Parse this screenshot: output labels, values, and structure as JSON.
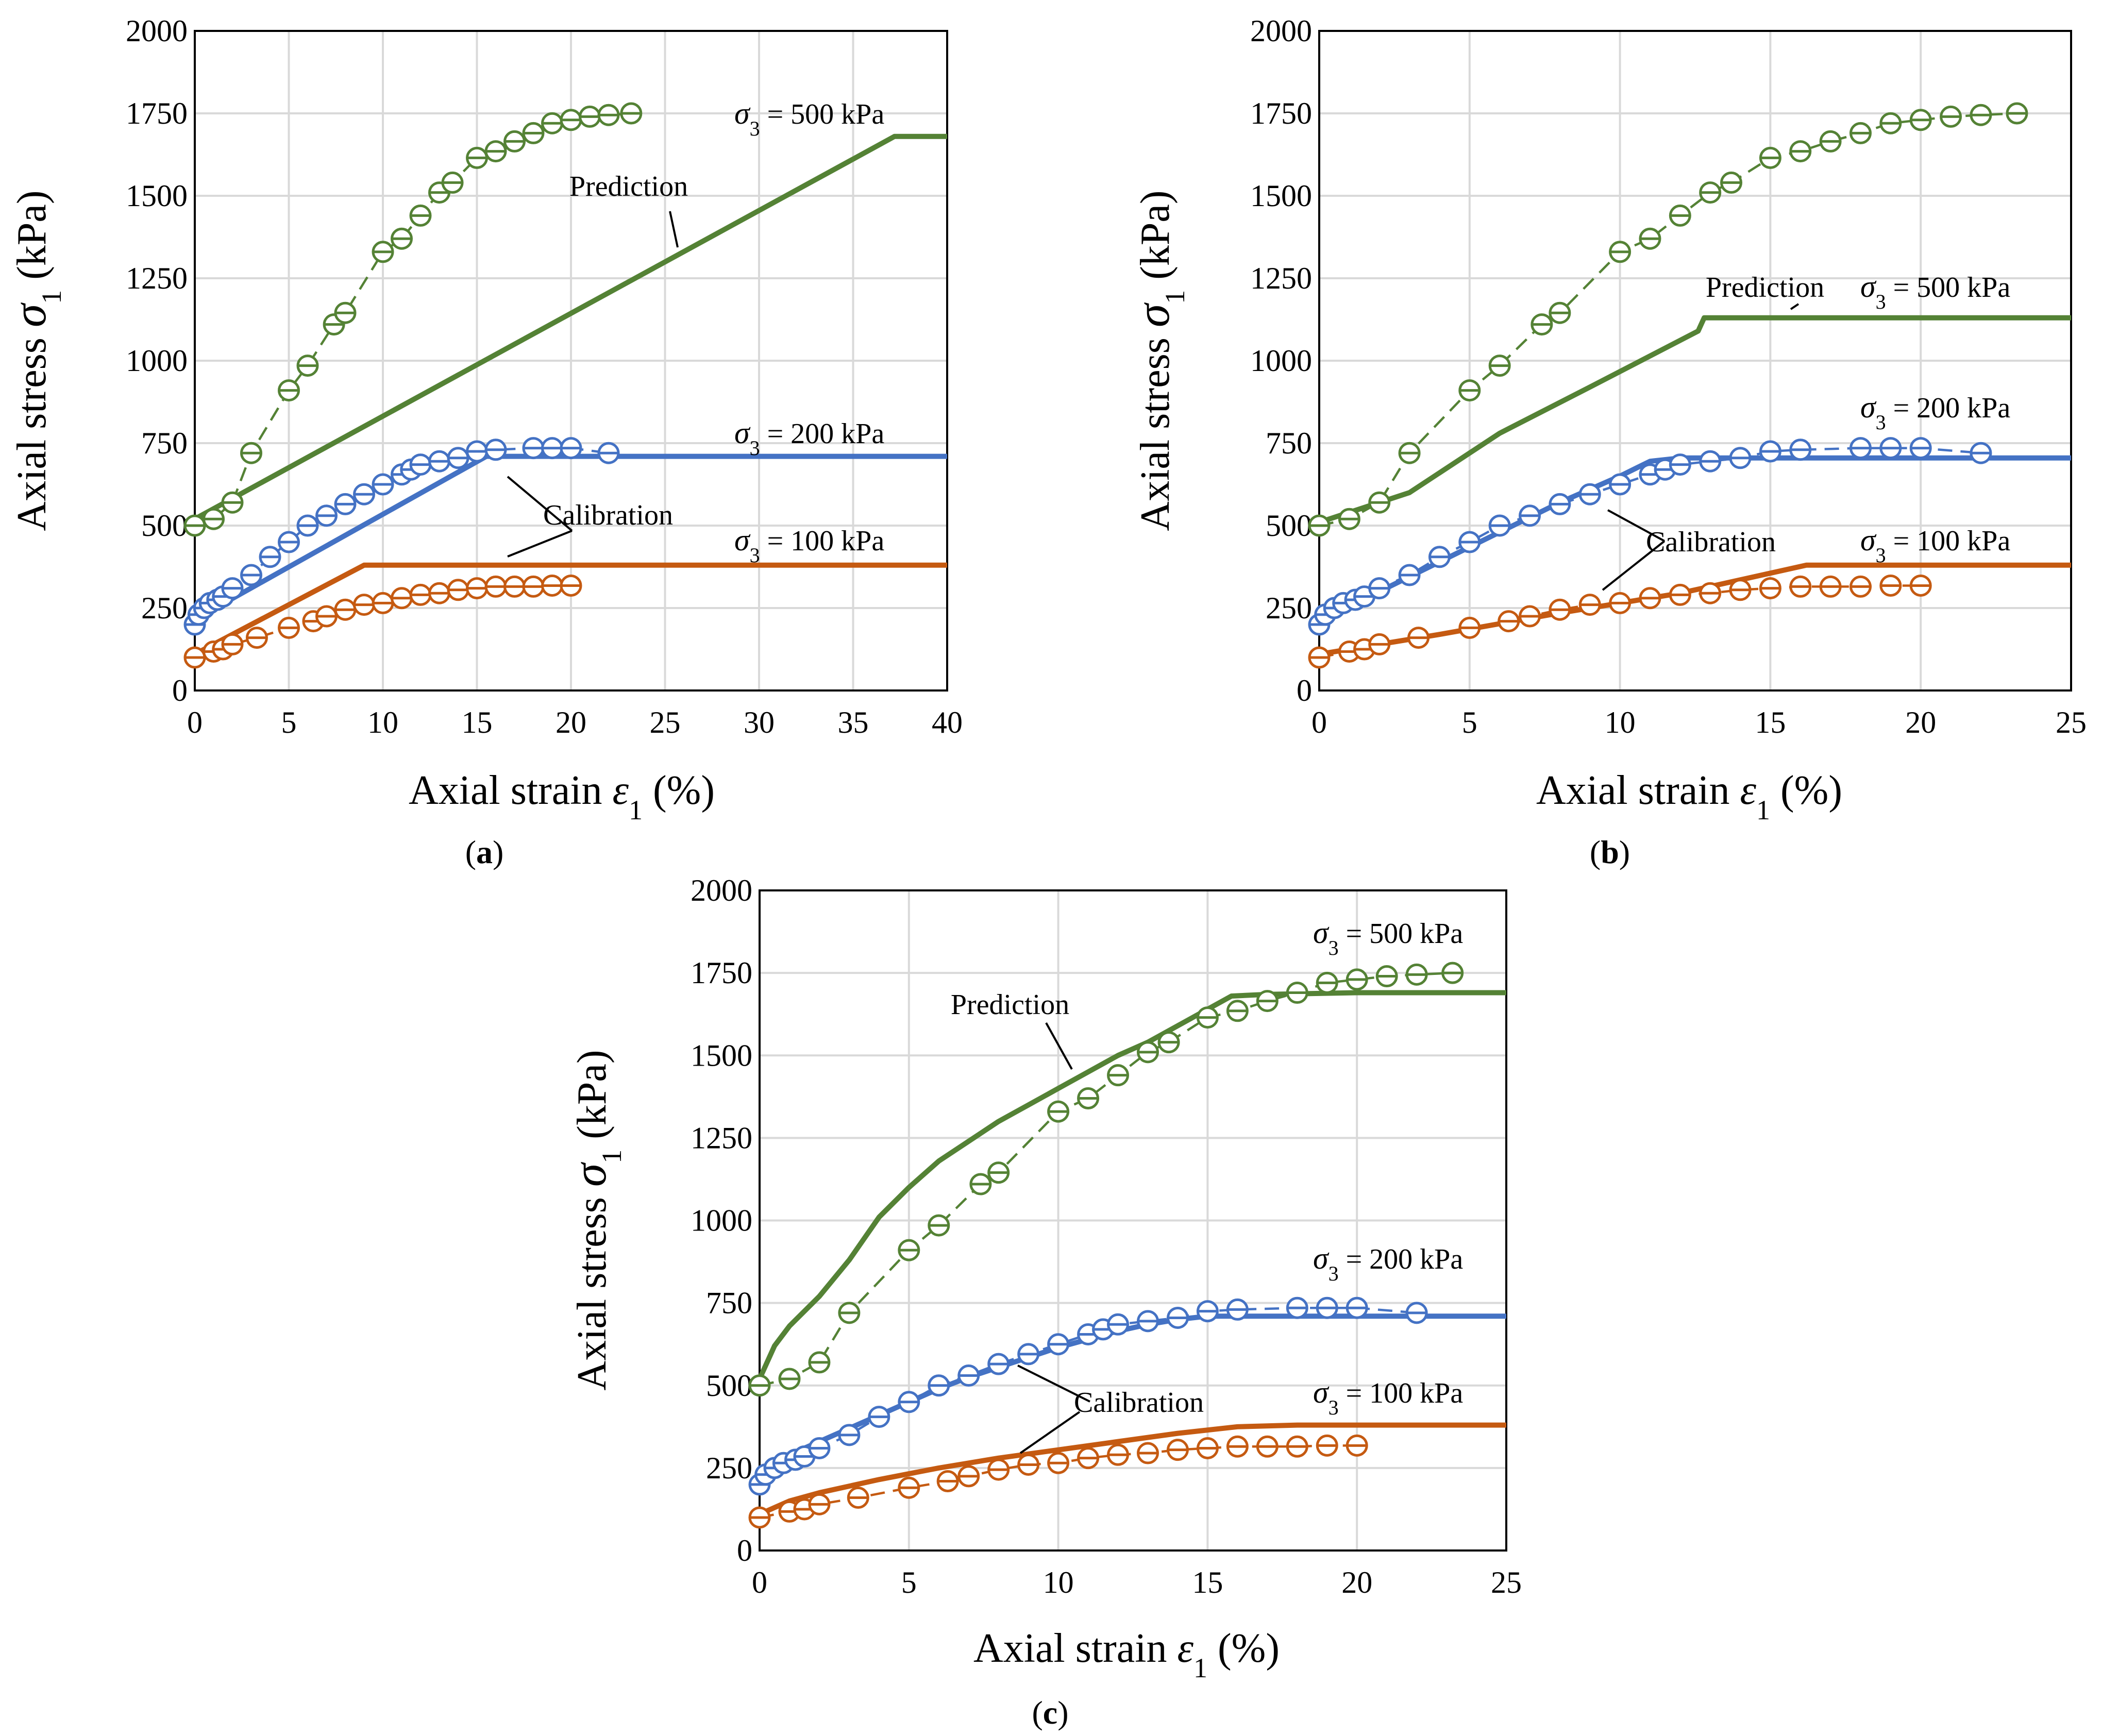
{
  "figure": {
    "panels": [
      "a",
      "b",
      "c"
    ]
  },
  "colors": {
    "s500": "#548235",
    "s200": "#4472C4",
    "s100": "#C55A11",
    "grid": "#d9d9d9",
    "axis": "#000000"
  },
  "chart_data": [
    {
      "panel": "a",
      "type": "line",
      "caption_letter": "a",
      "xlabel_main": "Axial strain ",
      "xlabel_symbol": "ε",
      "xlabel_sub": "1",
      "xlabel_tail": " (%)",
      "ylabel_main": "Axial stress ",
      "ylabel_symbol": "σ",
      "ylabel_sub": "1",
      "ylabel_tail": " (kPa)",
      "xlim": [
        0,
        40
      ],
      "ylim": [
        0,
        2000
      ],
      "xticks": [
        0,
        5,
        10,
        15,
        20,
        25,
        30,
        35,
        40
      ],
      "yticks": [
        0,
        250,
        500,
        750,
        1000,
        1250,
        1500,
        1750,
        2000
      ],
      "series": [
        {
          "name": "σ3 = 500 kPa",
          "color_key": "s500",
          "label_symbol": "σ",
          "label_sub": "3",
          "label_rest": " = 500 kPa",
          "model": {
            "x": [
              0,
              37.2,
              40
            ],
            "y": [
              520,
              1680,
              1680
            ]
          },
          "test": {
            "x": [
              0,
              1,
              2,
              3,
              5,
              6,
              7.4,
              8,
              10,
              11,
              12,
              13,
              13.7,
              15,
              16,
              17,
              18,
              19,
              20,
              21,
              22,
              23.2
            ],
            "y": [
              500,
              520,
              570,
              720,
              910,
              985,
              1110,
              1145,
              1330,
              1370,
              1440,
              1510,
              1540,
              1615,
              1635,
              1665,
              1690,
              1720,
              1730,
              1740,
              1745,
              1750
            ]
          }
        },
        {
          "name": "σ3 = 200 kPa",
          "color_key": "s200",
          "label_symbol": "σ",
          "label_sub": "3",
          "label_rest": " = 200 kPa",
          "model": {
            "x": [
              0,
              15.5,
              40
            ],
            "y": [
              215,
              710,
              710
            ]
          },
          "test": {
            "x": [
              0,
              0.2,
              0.5,
              0.8,
              1.2,
              1.5,
              2,
              3,
              4,
              5,
              6,
              7,
              8,
              9,
              10,
              11,
              11.5,
              12,
              13,
              14,
              15,
              16,
              18,
              19,
              20,
              22
            ],
            "y": [
              200,
              230,
              250,
              265,
              275,
              285,
              310,
              350,
              405,
              450,
              500,
              530,
              565,
              595,
              625,
              655,
              670,
              685,
              695,
              705,
              725,
              730,
              735,
              735,
              735,
              720
            ]
          }
        },
        {
          "name": "σ3 = 100 kPa",
          "color_key": "s100",
          "label_symbol": "σ",
          "label_sub": "3",
          "label_rest": " = 100 kPa",
          "model": {
            "x": [
              0,
              9,
              40
            ],
            "y": [
              110,
              380,
              380
            ]
          },
          "test": {
            "x": [
              0,
              1,
              1.5,
              2,
              3.3,
              5,
              6.3,
              7,
              8,
              9,
              10,
              11,
              12,
              13,
              14,
              15,
              16,
              17,
              18,
              19,
              20
            ],
            "y": [
              100,
              118,
              125,
              140,
              160,
              190,
              210,
              225,
              245,
              260,
              265,
              280,
              290,
              295,
              305,
              310,
              315,
              315,
              315,
              318,
              318
            ]
          }
        }
      ],
      "annotations": [
        {
          "text": "Prediction"
        },
        {
          "text": "Calibration"
        }
      ]
    },
    {
      "panel": "b",
      "type": "line",
      "caption_letter": "b",
      "xlabel_main": "Axial strain ",
      "xlabel_symbol": "ε",
      "xlabel_sub": "1",
      "xlabel_tail": " (%)",
      "ylabel_main": "Axial stress ",
      "ylabel_symbol": "σ",
      "ylabel_sub": "1",
      "ylabel_tail": " (kPa)",
      "xlim": [
        0,
        25
      ],
      "ylim": [
        0,
        2000
      ],
      "xticks": [
        0,
        5,
        10,
        15,
        20,
        25
      ],
      "yticks": [
        0,
        250,
        500,
        750,
        1000,
        1250,
        1500,
        1750,
        2000
      ],
      "series": [
        {
          "name": "σ3 = 500 kPa",
          "color_key": "s500",
          "label_symbol": "σ",
          "label_sub": "3",
          "label_rest": " = 500 kPa",
          "model": {
            "x": [
              0,
              3,
              6,
              9,
              12.6,
              12.8,
              25
            ],
            "y": [
              510,
              600,
              780,
              920,
              1090,
              1130,
              1130
            ]
          },
          "test": {
            "x": [
              0,
              1,
              2,
              3,
              5,
              6,
              7.4,
              8,
              10,
              11,
              12,
              13,
              13.7,
              15,
              16,
              17,
              18,
              19,
              20,
              21,
              22,
              23.2
            ],
            "y": [
              500,
              520,
              570,
              720,
              910,
              985,
              1110,
              1145,
              1330,
              1370,
              1440,
              1510,
              1540,
              1615,
              1635,
              1665,
              1690,
              1720,
              1730,
              1740,
              1745,
              1750
            ]
          }
        },
        {
          "name": "σ3 = 200 kPa",
          "color_key": "s200",
          "label_symbol": "σ",
          "label_sub": "3",
          "label_rest": " = 200 kPa",
          "model": {
            "x": [
              0,
              2,
              4,
              6,
              8,
              10,
              11,
              12,
              25
            ],
            "y": [
              215,
              300,
              390,
              480,
              570,
              650,
              695,
              705,
              705
            ]
          },
          "test": {
            "x": [
              0,
              0.2,
              0.5,
              0.8,
              1.2,
              1.5,
              2,
              3,
              4,
              5,
              6,
              7,
              8,
              9,
              10,
              11,
              11.5,
              12,
              13,
              14,
              15,
              16,
              18,
              19,
              20,
              22
            ],
            "y": [
              200,
              230,
              250,
              265,
              275,
              285,
              310,
              350,
              405,
              450,
              500,
              530,
              565,
              595,
              625,
              655,
              670,
              685,
              695,
              705,
              725,
              730,
              735,
              735,
              735,
              720
            ]
          }
        },
        {
          "name": "σ3 = 100 kPa",
          "color_key": "s100",
          "label_symbol": "σ",
          "label_sub": "3",
          "label_rest": " = 100 kPa",
          "model": {
            "x": [
              0,
              4,
              8,
              12,
              16.2,
              25
            ],
            "y": [
              110,
              170,
              235,
              295,
              380,
              380
            ]
          },
          "test": {
            "x": [
              0,
              1,
              1.5,
              2,
              3.3,
              5,
              6.3,
              7,
              8,
              9,
              10,
              11,
              12,
              13,
              14,
              15,
              16,
              17,
              18,
              19,
              20
            ],
            "y": [
              100,
              118,
              125,
              140,
              160,
              190,
              210,
              225,
              245,
              260,
              265,
              280,
              290,
              295,
              305,
              310,
              315,
              315,
              315,
              318,
              318
            ]
          }
        }
      ],
      "annotations": [
        {
          "text": "Prediction"
        },
        {
          "text": "Calibration"
        }
      ]
    },
    {
      "panel": "c",
      "type": "line",
      "caption_letter": "c",
      "xlabel_main": "Axial strain ",
      "xlabel_symbol": "ε",
      "xlabel_sub": "1",
      "xlabel_tail": " (%)",
      "ylabel_main": "Axial stress ",
      "ylabel_symbol": "σ",
      "ylabel_sub": "1",
      "ylabel_tail": " (kPa)",
      "xlim": [
        0,
        25
      ],
      "ylim": [
        0,
        2000
      ],
      "xticks": [
        0,
        5,
        10,
        15,
        20,
        25
      ],
      "yticks": [
        0,
        250,
        500,
        750,
        1000,
        1250,
        1500,
        1750,
        2000
      ],
      "series": [
        {
          "name": "σ3 = 500 kPa",
          "color_key": "s500",
          "label_symbol": "σ",
          "label_sub": "3",
          "label_rest": " = 500 kPa",
          "model": {
            "x": [
              0,
              0.5,
              1,
              2,
              3,
              4,
              5,
              6,
              7,
              8,
              9,
              10,
              11,
              12,
              13,
              14,
              15,
              15.8,
              17,
              20,
              25
            ],
            "y": [
              520,
              620,
              680,
              770,
              880,
              1010,
              1100,
              1180,
              1240,
              1300,
              1350,
              1400,
              1450,
              1500,
              1540,
              1590,
              1640,
              1680,
              1685,
              1690,
              1690
            ]
          },
          "test": {
            "x": [
              0,
              1,
              2,
              3,
              5,
              6,
              7.4,
              8,
              10,
              11,
              12,
              13,
              13.7,
              15,
              16,
              17,
              18,
              19,
              20,
              21,
              22,
              23.2
            ],
            "y": [
              500,
              520,
              570,
              720,
              910,
              985,
              1110,
              1145,
              1330,
              1370,
              1440,
              1510,
              1540,
              1615,
              1635,
              1665,
              1690,
              1720,
              1730,
              1740,
              1745,
              1750
            ]
          }
        },
        {
          "name": "σ3 = 200 kPa",
          "color_key": "s200",
          "label_symbol": "σ",
          "label_sub": "3",
          "label_rest": " = 200 kPa",
          "model": {
            "x": [
              0,
              0.5,
              1,
              2,
              3,
              4,
              5,
              6,
              7,
              8,
              9,
              10,
              11,
              12,
              13,
              14,
              15,
              16,
              25
            ],
            "y": [
              200,
              260,
              290,
              330,
              370,
              410,
              450,
              490,
              525,
              555,
              585,
              615,
              640,
              665,
              685,
              700,
              710,
              710,
              710
            ]
          },
          "test": {
            "x": [
              0,
              0.2,
              0.5,
              0.8,
              1.2,
              1.5,
              2,
              3,
              4,
              5,
              6,
              7,
              8,
              9,
              10,
              11,
              11.5,
              12,
              13,
              14,
              15,
              16,
              18,
              19,
              20,
              22
            ],
            "y": [
              200,
              230,
              250,
              265,
              275,
              285,
              310,
              350,
              405,
              450,
              500,
              530,
              565,
              595,
              625,
              655,
              670,
              685,
              695,
              705,
              725,
              730,
              735,
              735,
              735,
              720
            ]
          }
        },
        {
          "name": "σ3 = 100 kPa",
          "color_key": "s100",
          "label_symbol": "σ",
          "label_sub": "3",
          "label_rest": " = 100 kPa",
          "model": {
            "x": [
              0,
              0.5,
              1,
              2,
              3,
              4,
              6,
              8,
              10,
              12,
              14,
              16,
              18,
              25
            ],
            "y": [
              110,
              130,
              150,
              175,
              195,
              215,
              250,
              280,
              305,
              330,
              355,
              375,
              380,
              380
            ]
          },
          "test": {
            "x": [
              0,
              1,
              1.5,
              2,
              3.3,
              5,
              6.3,
              7,
              8,
              9,
              10,
              11,
              12,
              13,
              14,
              15,
              16,
              17,
              18,
              19,
              20
            ],
            "y": [
              100,
              118,
              125,
              140,
              160,
              190,
              210,
              225,
              245,
              260,
              265,
              280,
              290,
              295,
              305,
              310,
              315,
              315,
              315,
              318,
              318
            ]
          }
        }
      ],
      "annotations": [
        {
          "text": "Prediction"
        },
        {
          "text": "Calibration"
        }
      ]
    }
  ]
}
